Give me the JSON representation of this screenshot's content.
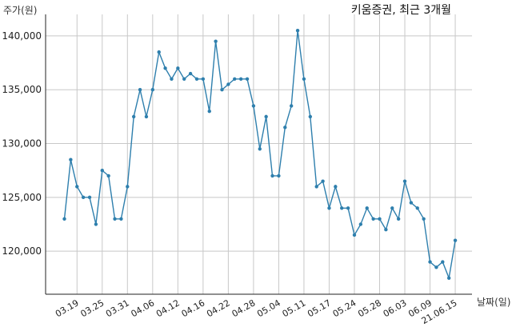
{
  "chart_data": {
    "type": "line",
    "title": "키움증권, 최근 3개월",
    "ylabel": "주가(원)",
    "xlabel": "날짜(일)",
    "ylim": [
      116000,
      142000
    ],
    "yticks": [
      120000,
      125000,
      130000,
      135000,
      140000
    ],
    "ytick_labels": [
      "120,000",
      "125,000",
      "130,000",
      "135,000",
      "140,000"
    ],
    "xtick_labels": [
      "03.19",
      "03.25",
      "03.31",
      "04.06",
      "04.12",
      "04.16",
      "04.22",
      "04.28",
      "05.04",
      "05.11",
      "05.17",
      "05.24",
      "05.28",
      "06.03",
      "06.09",
      "21.06.15"
    ],
    "xtick_indices": [
      2,
      6,
      10,
      14,
      18,
      22,
      26,
      30,
      34,
      38,
      42,
      46,
      50,
      54,
      58,
      62
    ],
    "grid": true,
    "line_color": "#2e7fad",
    "series": [
      {
        "values": [
          123000,
          128500,
          126000,
          125000,
          125000,
          122500,
          127500,
          127000,
          123000,
          123000,
          126000,
          132500,
          135000,
          132500,
          135000,
          138500,
          137000,
          136000,
          137000,
          136000,
          136500,
          136000,
          136000,
          133000,
          139500,
          135000,
          135500,
          136000,
          136000,
          136000,
          133500,
          129500,
          132500,
          127000,
          127000,
          131500,
          133500,
          140500,
          136000,
          132500,
          126000,
          126500,
          124000,
          126000,
          124000,
          124000,
          121500,
          122500,
          124000,
          123000,
          123000,
          122000,
          124000,
          123000,
          126500,
          124500,
          124000,
          123000,
          119000,
          118500,
          119000,
          117500,
          121000
        ]
      }
    ]
  }
}
